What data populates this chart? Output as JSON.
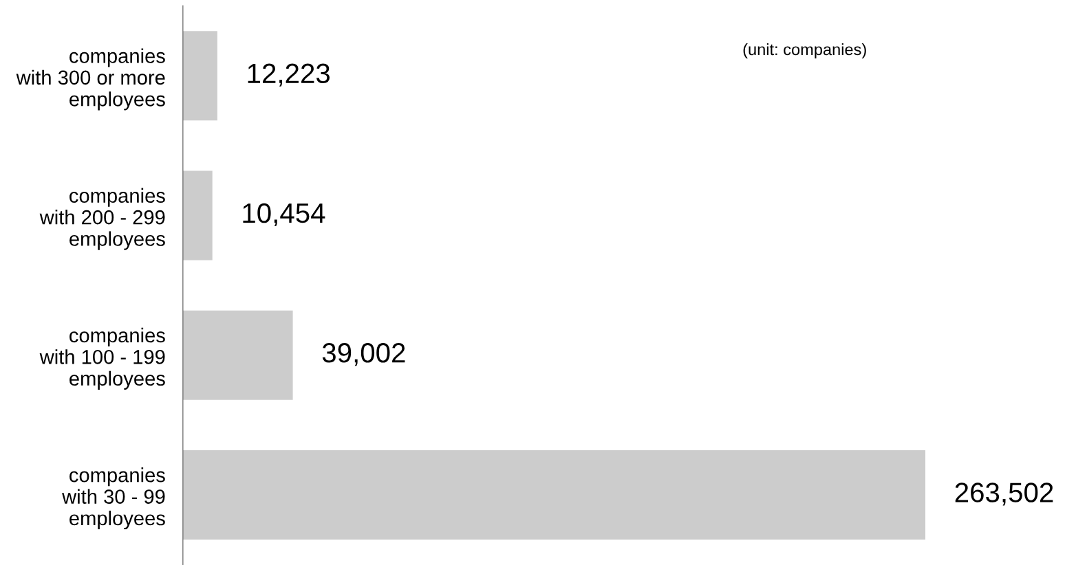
{
  "chart_data": {
    "type": "bar",
    "orientation": "horizontal",
    "categories": [
      "companies\nwith 300 or more\nemployees",
      "companies\nwith 200 - 299\nemployees",
      "companies\nwith 100 - 199\nemployees",
      "companies\nwith 30 - 99\nemployees"
    ],
    "values": [
      12223,
      10454,
      39002,
      263502
    ],
    "value_labels": [
      "12,223",
      "10,454",
      "39,002",
      "263,502"
    ],
    "color": "#cccccc",
    "annotations": [
      "(unit: companies)"
    ],
    "grid": false,
    "legend": false
  }
}
